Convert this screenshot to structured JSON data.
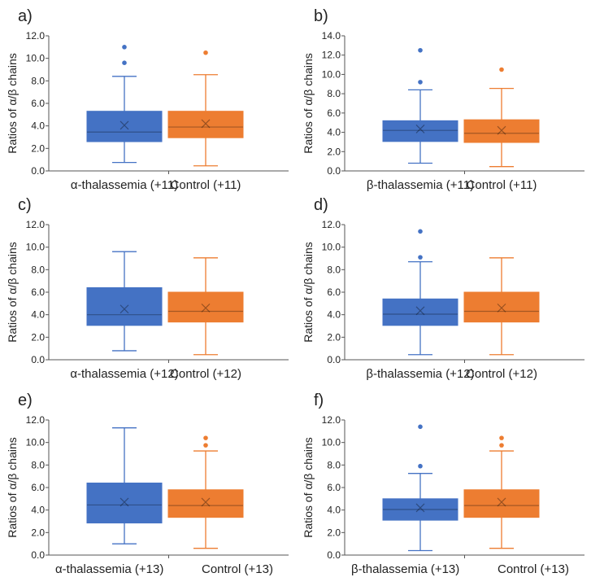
{
  "colors": {
    "blue": "#4472C4",
    "orange": "#ED7D31",
    "axis": "#555555"
  },
  "chart_data": [
    {
      "type": "box",
      "title": "a)",
      "ylabel": "Ratios of α/β chains",
      "ylim": [
        0,
        12
      ],
      "yticks": [
        "0.0",
        "2.0",
        "4.0",
        "6.0",
        "8.0",
        "10.0",
        "12.0"
      ],
      "series": [
        {
          "name": "α-thalassemia (+11)",
          "color": "blue",
          "min": 0.75,
          "q1": 2.6,
          "median": 3.45,
          "q3": 5.3,
          "max": 8.4,
          "mean": 4.05,
          "outliers": [
            9.6,
            11.0
          ]
        },
        {
          "name": "Control (+11)",
          "color": "orange",
          "min": 0.45,
          "q1": 2.95,
          "median": 3.9,
          "q3": 5.3,
          "max": 8.55,
          "mean": 4.2,
          "outliers": [
            10.5
          ]
        }
      ]
    },
    {
      "type": "box",
      "title": "b)",
      "ylabel": "Ratios of α/β chains",
      "ylim": [
        0,
        14
      ],
      "yticks": [
        "0.0",
        "2.0",
        "4.0",
        "6.0",
        "8.0",
        "10.0",
        "12.0",
        "14.0"
      ],
      "series": [
        {
          "name": "β-thalassemia (+11)",
          "color": "blue",
          "min": 0.8,
          "q1": 3.05,
          "median": 4.2,
          "q3": 5.2,
          "max": 8.4,
          "mean": 4.35,
          "outliers": [
            9.2,
            12.5
          ]
        },
        {
          "name": "Control (+11)",
          "color": "orange",
          "min": 0.45,
          "q1": 2.95,
          "median": 3.9,
          "q3": 5.3,
          "max": 8.55,
          "mean": 4.2,
          "outliers": [
            10.5
          ]
        }
      ]
    },
    {
      "type": "box",
      "title": "c)",
      "ylabel": "Ratios of α/β chains",
      "ylim": [
        0,
        12
      ],
      "yticks": [
        "0.0",
        "2.0",
        "4.0",
        "6.0",
        "8.0",
        "10.0",
        "12.0"
      ],
      "series": [
        {
          "name": "α-thalassemia (+12)",
          "color": "blue",
          "min": 0.8,
          "q1": 3.05,
          "median": 4.0,
          "q3": 6.4,
          "max": 9.6,
          "mean": 4.5,
          "outliers": []
        },
        {
          "name": "Control (+12)",
          "color": "orange",
          "min": 0.45,
          "q1": 3.35,
          "median": 4.3,
          "q3": 6.0,
          "max": 9.05,
          "mean": 4.6,
          "outliers": []
        }
      ]
    },
    {
      "type": "box",
      "title": "d)",
      "ylabel": "Ratios of α/β chains",
      "ylim": [
        0,
        12
      ],
      "yticks": [
        "0.0",
        "2.0",
        "4.0",
        "6.0",
        "8.0",
        "10.0",
        "12.0"
      ],
      "series": [
        {
          "name": "β-thalassemia (+12)",
          "color": "blue",
          "min": 0.45,
          "q1": 3.05,
          "median": 4.05,
          "q3": 5.4,
          "max": 8.7,
          "mean": 4.35,
          "outliers": [
            9.1,
            11.4
          ]
        },
        {
          "name": "Control (+12)",
          "color": "orange",
          "min": 0.45,
          "q1": 3.35,
          "median": 4.3,
          "q3": 6.0,
          "max": 9.05,
          "mean": 4.6,
          "outliers": []
        }
      ]
    },
    {
      "type": "box",
      "title": "e)",
      "ylabel": "Ratios of α/β chains",
      "ylim": [
        0,
        12
      ],
      "yticks": [
        "0.0",
        "2.0",
        "4.0",
        "6.0",
        "8.0",
        "10.0",
        "12.0"
      ],
      "series": [
        {
          "name": "α-thalassemia (+13)",
          "color": "blue",
          "min": 1.0,
          "q1": 2.85,
          "median": 4.45,
          "q3": 6.4,
          "max": 11.3,
          "mean": 4.7,
          "outliers": []
        },
        {
          "name": "Control (+13)",
          "color": "orange",
          "min": 0.6,
          "q1": 3.35,
          "median": 4.4,
          "q3": 5.8,
          "max": 9.25,
          "mean": 4.7,
          "outliers": [
            9.75,
            10.4
          ]
        }
      ]
    },
    {
      "type": "box",
      "title": "f)",
      "ylabel": "Ratios of α/β chains",
      "ylim": [
        0,
        12
      ],
      "yticks": [
        "0.0",
        "2.0",
        "4.0",
        "6.0",
        "8.0",
        "10.0",
        "12.0"
      ],
      "series": [
        {
          "name": "β-thalassemia (+13)",
          "color": "blue",
          "min": 0.4,
          "q1": 3.1,
          "median": 4.05,
          "q3": 5.0,
          "max": 7.25,
          "mean": 4.2,
          "outliers": [
            7.9,
            11.4
          ]
        },
        {
          "name": "Control (+13)",
          "color": "orange",
          "min": 0.6,
          "q1": 3.35,
          "median": 4.4,
          "q3": 5.8,
          "max": 9.25,
          "mean": 4.7,
          "outliers": [
            9.75,
            10.4
          ]
        }
      ]
    }
  ]
}
